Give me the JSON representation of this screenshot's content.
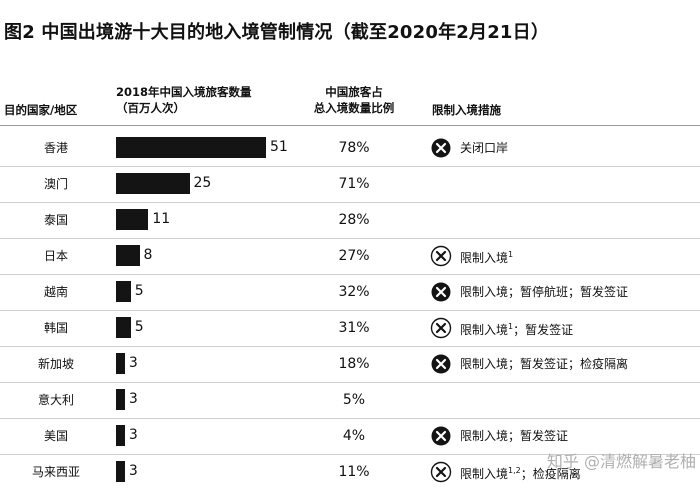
{
  "title": "图2 中国出境游十大目的地入境管制情况（截至2020年2月21日）",
  "headers": {
    "country": "目的国家/地区",
    "visitors_line1": "2018年中国入境旅客数量",
    "visitors_line2": "（百万人次）",
    "share_line1": "中国旅客占",
    "share_line2": "总入境数量比例",
    "measures": "限制入境措施"
  },
  "colors": {
    "bar": "#141414",
    "icon_filled": "#141414",
    "icon_outline": "#141414"
  },
  "chart_data": {
    "type": "bar",
    "orientation": "horizontal",
    "title": "图2 中国出境游十大目的地入境管制情况（截至2020年2月21日）",
    "categories": [
      "香港",
      "澳门",
      "泰国",
      "日本",
      "越南",
      "韩国",
      "新加坡",
      "意大利",
      "美国",
      "马来西亚"
    ],
    "series": [
      {
        "name": "2018年中国入境旅客数量（百万人次）",
        "values": [
          51,
          25,
          11,
          8,
          5,
          5,
          3,
          3,
          3,
          3
        ]
      }
    ],
    "value_labels": [
      "51",
      "25",
      "11",
      "8",
      "5",
      "5",
      "3",
      "3",
      "3",
      "3"
    ],
    "share_of_total": [
      "78%",
      "71%",
      "28%",
      "27%",
      "32%",
      "31%",
      "18%",
      "5%",
      "4%",
      "11%"
    ],
    "measures": [
      {
        "icon": "filled-x-circle",
        "main": "关闭口岸",
        "sup": "",
        "rest": ""
      },
      {
        "icon": "",
        "main": "",
        "sup": "",
        "rest": ""
      },
      {
        "icon": "",
        "main": "",
        "sup": "",
        "rest": ""
      },
      {
        "icon": "outline-x-circle",
        "main": "限制入境",
        "sup": "1",
        "rest": ""
      },
      {
        "icon": "filled-x-circle",
        "main": "限制入境；暂停航班；暂发签证",
        "sup": "",
        "rest": ""
      },
      {
        "icon": "outline-x-circle",
        "main": "限制入境",
        "sup": "1",
        "rest": "；暂发签证"
      },
      {
        "icon": "filled-x-circle",
        "main": "限制入境；暂发签证；检疫隔离",
        "sup": "",
        "rest": ""
      },
      {
        "icon": "",
        "main": "",
        "sup": "",
        "rest": ""
      },
      {
        "icon": "filled-x-circle",
        "main": "限制入境；暂发签证",
        "sup": "",
        "rest": ""
      },
      {
        "icon": "outline-x-circle",
        "main": "限制入境",
        "sup": "1,2",
        "rest": "；检疫隔离"
      }
    ],
    "xlim": [
      0,
      51
    ],
    "grid": false,
    "legend": "none"
  },
  "watermark": "知乎 @清燃解暑老柚"
}
